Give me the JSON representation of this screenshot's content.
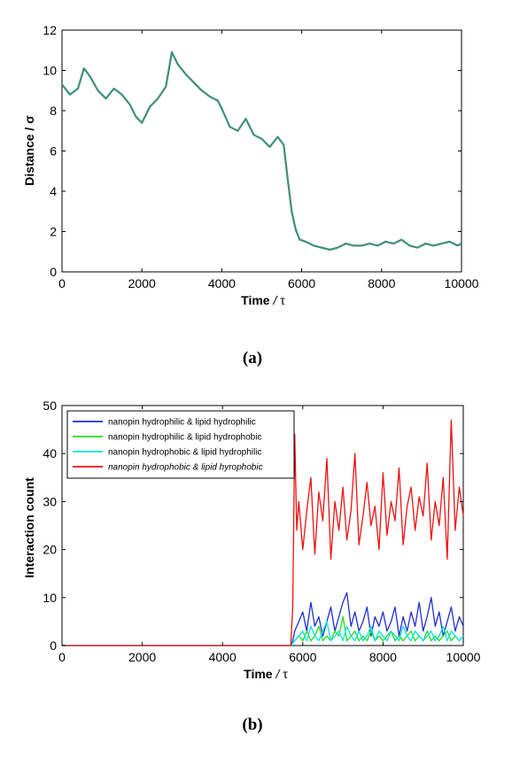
{
  "chart_data": [
    {
      "type": "line",
      "caption": "(a)",
      "xlabel": "Time",
      "xunit": "τ",
      "ylabel": "Distance",
      "yunit": "σ",
      "xlim": [
        0,
        10000
      ],
      "ylim": [
        0,
        12
      ],
      "xticks": [
        0,
        2000,
        4000,
        6000,
        8000,
        10000
      ],
      "yticks": [
        0,
        2,
        4,
        6,
        8,
        10,
        12
      ],
      "grid": false,
      "series": [
        {
          "color": "#3f8f7a",
          "x": [
            0,
            200,
            400,
            550,
            700,
            900,
            1100,
            1300,
            1500,
            1700,
            1850,
            2000,
            2200,
            2400,
            2600,
            2750,
            2900,
            3100,
            3300,
            3500,
            3700,
            3900,
            4000,
            4200,
            4400,
            4600,
            4800,
            5000,
            5200,
            5400,
            5550,
            5650,
            5750,
            5850,
            5950,
            6100,
            6300,
            6500,
            6700,
            6900,
            7100,
            7300,
            7500,
            7700,
            7900,
            8100,
            8300,
            8500,
            8700,
            8900,
            9100,
            9300,
            9500,
            9700,
            9900,
            10000
          ],
          "y": [
            9.3,
            8.8,
            9.1,
            10.1,
            9.7,
            9.0,
            8.6,
            9.1,
            8.8,
            8.3,
            7.7,
            7.4,
            8.2,
            8.6,
            9.2,
            10.9,
            10.3,
            9.8,
            9.4,
            9.0,
            8.7,
            8.5,
            8.1,
            7.2,
            7.0,
            7.6,
            6.8,
            6.6,
            6.2,
            6.7,
            6.3,
            4.6,
            3.0,
            2.1,
            1.6,
            1.5,
            1.3,
            1.2,
            1.1,
            1.2,
            1.4,
            1.3,
            1.3,
            1.4,
            1.3,
            1.5,
            1.4,
            1.6,
            1.3,
            1.2,
            1.4,
            1.3,
            1.4,
            1.5,
            1.3,
            1.4
          ]
        }
      ]
    },
    {
      "type": "line",
      "caption": "(b)",
      "xlabel": "Time",
      "xunit": "τ",
      "ylabel": "Interaction count",
      "xlim": [
        0,
        10000
      ],
      "ylim": [
        0,
        50
      ],
      "xticks": [
        0,
        2000,
        4000,
        6000,
        8000,
        10000
      ],
      "yticks": [
        0,
        10,
        20,
        30,
        40,
        50
      ],
      "grid": false,
      "legend": "top-left",
      "series": [
        {
          "name": "nanopin hydrophilic & lipid hydrophilic",
          "color": "#1f2fd0",
          "x": [
            0,
            5700,
            5750,
            5800,
            5900,
            6000,
            6100,
            6200,
            6300,
            6400,
            6500,
            6600,
            6700,
            6800,
            6900,
            7000,
            7100,
            7200,
            7300,
            7400,
            7500,
            7600,
            7700,
            7800,
            7900,
            8000,
            8100,
            8200,
            8300,
            8400,
            8500,
            8600,
            8700,
            8800,
            8900,
            9000,
            9100,
            9200,
            9300,
            9400,
            9500,
            9600,
            9700,
            9800,
            9900,
            10000
          ],
          "y": [
            0,
            0,
            1,
            3,
            5,
            7,
            3,
            9,
            4,
            6,
            2,
            5,
            8,
            3,
            6,
            9,
            11,
            4,
            7,
            3,
            5,
            8,
            2,
            6,
            4,
            7,
            3,
            5,
            8,
            2,
            6,
            3,
            7,
            4,
            9,
            3,
            6,
            10,
            4,
            7,
            2,
            5,
            8,
            3,
            6,
            4
          ]
        },
        {
          "name": "nanopin hydrophilic & lipid hydrophobic",
          "color": "#22dd22",
          "x": [
            0,
            5700,
            5800,
            5900,
            6000,
            6100,
            6200,
            6300,
            6400,
            6500,
            6600,
            6700,
            6800,
            6900,
            7000,
            7100,
            7200,
            7300,
            7400,
            7500,
            7600,
            7700,
            7800,
            7900,
            8000,
            8100,
            8200,
            8300,
            8400,
            8500,
            8600,
            8700,
            8800,
            8900,
            9000,
            9100,
            9200,
            9300,
            9400,
            9500,
            9600,
            9700,
            9800,
            9900,
            10000
          ],
          "y": [
            0,
            0,
            1,
            2,
            1,
            3,
            1,
            2,
            4,
            1,
            2,
            1,
            3,
            2,
            6,
            1,
            2,
            3,
            1,
            2,
            1,
            3,
            1,
            2,
            1,
            2,
            3,
            1,
            2,
            1,
            2,
            3,
            1,
            2,
            1,
            3,
            1,
            2,
            1,
            2,
            3,
            1,
            2,
            1,
            2
          ]
        },
        {
          "name": "nanopin hydrophobic & lipid hydrophilic",
          "color": "#00e5e5",
          "x": [
            0,
            5700,
            5800,
            5900,
            6000,
            6100,
            6200,
            6300,
            6400,
            6500,
            6600,
            6700,
            6800,
            6900,
            7000,
            7100,
            7200,
            7300,
            7400,
            7500,
            7600,
            7700,
            7800,
            7900,
            8000,
            8100,
            8200,
            8300,
            8400,
            8500,
            8600,
            8700,
            8800,
            8900,
            9000,
            9100,
            9200,
            9300,
            9400,
            9500,
            9600,
            9700,
            9800,
            9900,
            10000
          ],
          "y": [
            0,
            0,
            1,
            2,
            3,
            1,
            4,
            2,
            1,
            3,
            5,
            1,
            2,
            3,
            1,
            4,
            2,
            1,
            3,
            1,
            2,
            4,
            1,
            3,
            2,
            1,
            3,
            2,
            1,
            4,
            2,
            1,
            3,
            2,
            1,
            2,
            3,
            1,
            2,
            4,
            1,
            3,
            2,
            1,
            2
          ]
        },
        {
          "name": "nanopin hydrophobic & lipid hyrophobic",
          "color": "#ee1111",
          "x": [
            0,
            5700,
            5750,
            5800,
            5850,
            5900,
            6000,
            6100,
            6200,
            6300,
            6400,
            6500,
            6600,
            6700,
            6800,
            6900,
            7000,
            7100,
            7200,
            7300,
            7400,
            7500,
            7600,
            7700,
            7800,
            7900,
            8000,
            8100,
            8200,
            8300,
            8400,
            8500,
            8600,
            8700,
            8800,
            8900,
            9000,
            9100,
            9200,
            9300,
            9400,
            9500,
            9600,
            9700,
            9800,
            9900,
            10000
          ],
          "y": [
            0,
            0,
            8,
            44,
            24,
            30,
            20,
            28,
            35,
            19,
            32,
            26,
            39,
            18,
            30,
            24,
            33,
            22,
            28,
            40,
            21,
            27,
            34,
            25,
            29,
            20,
            36,
            23,
            30,
            26,
            37,
            21,
            29,
            33,
            24,
            31,
            27,
            38,
            22,
            30,
            25,
            35,
            18,
            47,
            24,
            33,
            27
          ]
        }
      ]
    }
  ]
}
